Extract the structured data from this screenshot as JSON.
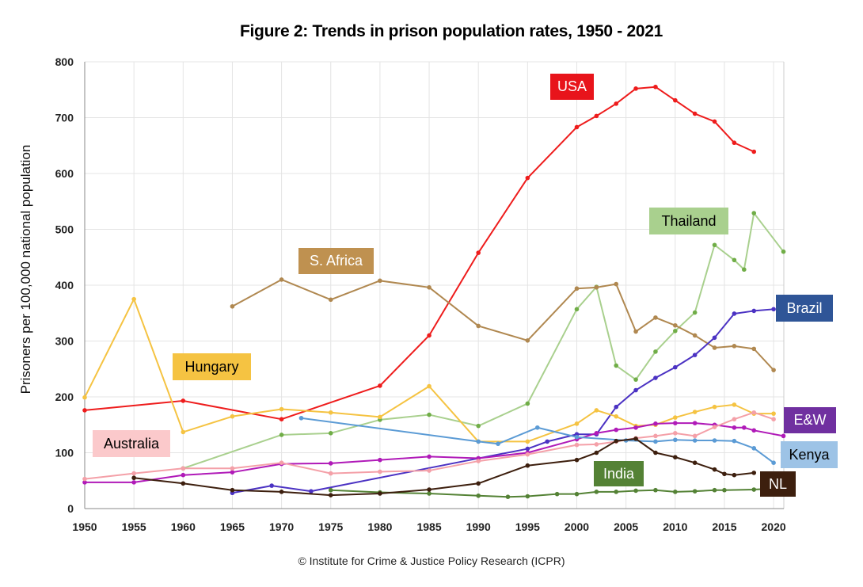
{
  "chart_data": {
    "type": "line",
    "title": "Figure 2: Trends in prison population rates, 1950 - 2021",
    "ylabel": "Prisoners per 100,000 national population",
    "xlabel": "",
    "xlim": [
      1950,
      2021
    ],
    "ylim": [
      0,
      800
    ],
    "xticks": [
      1950,
      1955,
      1960,
      1965,
      1970,
      1975,
      1980,
      1985,
      1990,
      1995,
      2000,
      2005,
      2010,
      2015,
      2020
    ],
    "yticks": [
      0,
      100,
      200,
      300,
      400,
      500,
      600,
      700,
      800
    ],
    "grid": true,
    "legend": "inline labels",
    "series": [
      {
        "name": "USA",
        "color": "#ee1c1c",
        "label_bg": "#e8141b",
        "label_fg": "#ffffff",
        "x": [
          1950,
          1960,
          1970,
          1980,
          1985,
          1990,
          1995,
          2000,
          2002,
          2004,
          2006,
          2008,
          2010,
          2012,
          2014,
          2016,
          2018
        ],
        "y": [
          176,
          193,
          160,
          220,
          310,
          458,
          592,
          683,
          703,
          725,
          752,
          755,
          731,
          707,
          693,
          655,
          639
        ]
      },
      {
        "name": "Thailand",
        "color": "#a9d08e",
        "label_bg": "#a9d08e",
        "label_fg": "#000000",
        "x": [
          1960,
          1970,
          1975,
          1980,
          1985,
          1990,
          1995,
          2000,
          2002,
          2004,
          2006,
          2008,
          2010,
          2012,
          2014,
          2016,
          2017,
          2018,
          2021
        ],
        "y": [
          72,
          132,
          135,
          159,
          168,
          148,
          188,
          357,
          397,
          256,
          231,
          281,
          318,
          351,
          472,
          445,
          428,
          529,
          460
        ]
      },
      {
        "name": "S. Africa",
        "color": "#b08850",
        "label_bg": "#bf9150",
        "label_fg": "#ffffff",
        "x": [
          1965,
          1970,
          1975,
          1980,
          1985,
          1990,
          1995,
          2000,
          2002,
          2004,
          2006,
          2008,
          2010,
          2012,
          2014,
          2016,
          2018,
          2020
        ],
        "y": [
          362,
          410,
          374,
          408,
          396,
          327,
          301,
          394,
          396,
          402,
          317,
          342,
          328,
          310,
          288,
          291,
          286,
          248
        ]
      },
      {
        "name": "Brazil",
        "color": "#4b32c3",
        "label_bg": "#2f5597",
        "label_fg": "#ffffff",
        "x": [
          1965,
          1969,
          1973,
          1990,
          1995,
          1997,
          2000,
          2002,
          2004,
          2006,
          2008,
          2010,
          2012,
          2014,
          2016,
          2018,
          2020
        ],
        "y": [
          28,
          41,
          31,
          90,
          107,
          120,
          133,
          133,
          182,
          212,
          234,
          253,
          275,
          306,
          349,
          354,
          357
        ]
      },
      {
        "name": "Hungary",
        "color": "#f5c342",
        "label_bg": "#f5c342",
        "label_fg": "#000000",
        "x": [
          1950,
          1955,
          1960,
          1965,
          1970,
          1975,
          1980,
          1985,
          1990,
          1995,
          2000,
          2002,
          2004,
          2006,
          2008,
          2010,
          2012,
          2014,
          2016,
          2018,
          2020
        ],
        "y": [
          199,
          375,
          137,
          165,
          178,
          172,
          164,
          219,
          120,
          120,
          152,
          176,
          165,
          148,
          150,
          163,
          173,
          182,
          186,
          170,
          170
        ]
      },
      {
        "name": "E&W",
        "color": "#b01ab8",
        "label_bg": "#7030a0",
        "label_fg": "#ffffff",
        "x": [
          1950,
          1955,
          1960,
          1965,
          1970,
          1975,
          1980,
          1985,
          1990,
          1995,
          2000,
          2002,
          2004,
          2006,
          2008,
          2010,
          2012,
          2014,
          2016,
          2017,
          2018,
          2021
        ],
        "y": [
          47,
          47,
          60,
          65,
          80,
          81,
          87,
          93,
          90,
          100,
          124,
          135,
          141,
          145,
          152,
          153,
          153,
          150,
          145,
          145,
          140,
          130
        ]
      },
      {
        "name": "Australia",
        "color": "#f4a0a8",
        "label_bg": "#fbc9cb",
        "label_fg": "#000000",
        "x": [
          1950,
          1955,
          1960,
          1965,
          1970,
          1975,
          1980,
          1985,
          1990,
          1995,
          2000,
          2002,
          2004,
          2006,
          2008,
          2010,
          2012,
          2014,
          2016,
          2018,
          2020
        ],
        "y": [
          53,
          63,
          72,
          72,
          82,
          63,
          66,
          68,
          85,
          97,
          114,
          115,
          120,
          126,
          130,
          135,
          130,
          146,
          160,
          172,
          160
        ]
      },
      {
        "name": "Kenya",
        "color": "#5b9bd5",
        "label_bg": "#9dc3e6",
        "label_fg": "#000000",
        "x": [
          1972,
          1990,
          1992,
          1996,
          2000,
          2005,
          2008,
          2010,
          2012,
          2014,
          2016,
          2018,
          2020
        ],
        "y": [
          162,
          120,
          116,
          145,
          128,
          122,
          120,
          123,
          122,
          122,
          121,
          108,
          82
        ]
      },
      {
        "name": "India",
        "color": "#548235",
        "label_bg": "#548235",
        "label_fg": "#ffffff",
        "x": [
          1975,
          1980,
          1985,
          1990,
          1993,
          1995,
          1998,
          2000,
          2002,
          2004,
          2006,
          2008,
          2010,
          2012,
          2014,
          2015,
          2018,
          2020
        ],
        "y": [
          33,
          29,
          27,
          23,
          21,
          22,
          26,
          26,
          30,
          30,
          32,
          33,
          30,
          31,
          33,
          33,
          34,
          36
        ]
      },
      {
        "name": "NL",
        "color": "#3d1f0e",
        "label_bg": "#3d1f0e",
        "label_fg": "#ffffff",
        "x": [
          1955,
          1960,
          1965,
          1970,
          1975,
          1980,
          1985,
          1990,
          1995,
          2000,
          2002,
          2004,
          2006,
          2008,
          2010,
          2012,
          2014,
          2015,
          2016,
          2018
        ],
        "y": [
          55,
          45,
          33,
          30,
          24,
          27,
          34,
          45,
          77,
          87,
          100,
          121,
          125,
          100,
          92,
          82,
          70,
          62,
          60,
          64
        ]
      }
    ]
  },
  "credit": "© Institute for Crime & Justice Policy Research (ICPR)"
}
